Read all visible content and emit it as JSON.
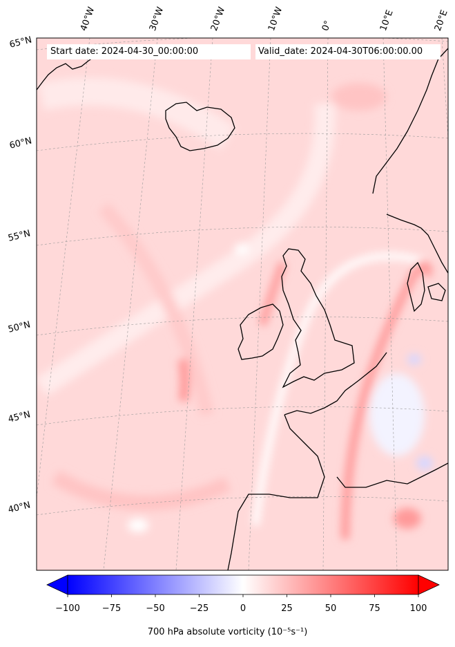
{
  "map": {
    "start_date": "Start date: 2024-04-30_00:00:00",
    "valid_date": "Valid_date: 2024-04-30T06:00:00.00",
    "longitude_labels": [
      "40°W",
      "30°W",
      "20°W",
      "10°W",
      "0°",
      "10°E",
      "20°E"
    ],
    "latitude_labels": [
      "65°N",
      "60°N",
      "55°N",
      "50°N",
      "45°N",
      "40°N"
    ],
    "field": "700 hPa absolute vorticity",
    "gridlines": "dashed",
    "coastlines": true
  },
  "colorbar": {
    "label": "700 hPa absolute vorticity (10⁻⁵s⁻¹)",
    "ticks": [
      "−100",
      "−75",
      "−50",
      "−25",
      "0",
      "25",
      "50",
      "75",
      "100"
    ],
    "min": -100,
    "max": 100,
    "extend": "both",
    "colormap": "bwr",
    "low_color": "#0000ff",
    "mid_color": "#ffffff",
    "high_color": "#ff0000"
  }
}
